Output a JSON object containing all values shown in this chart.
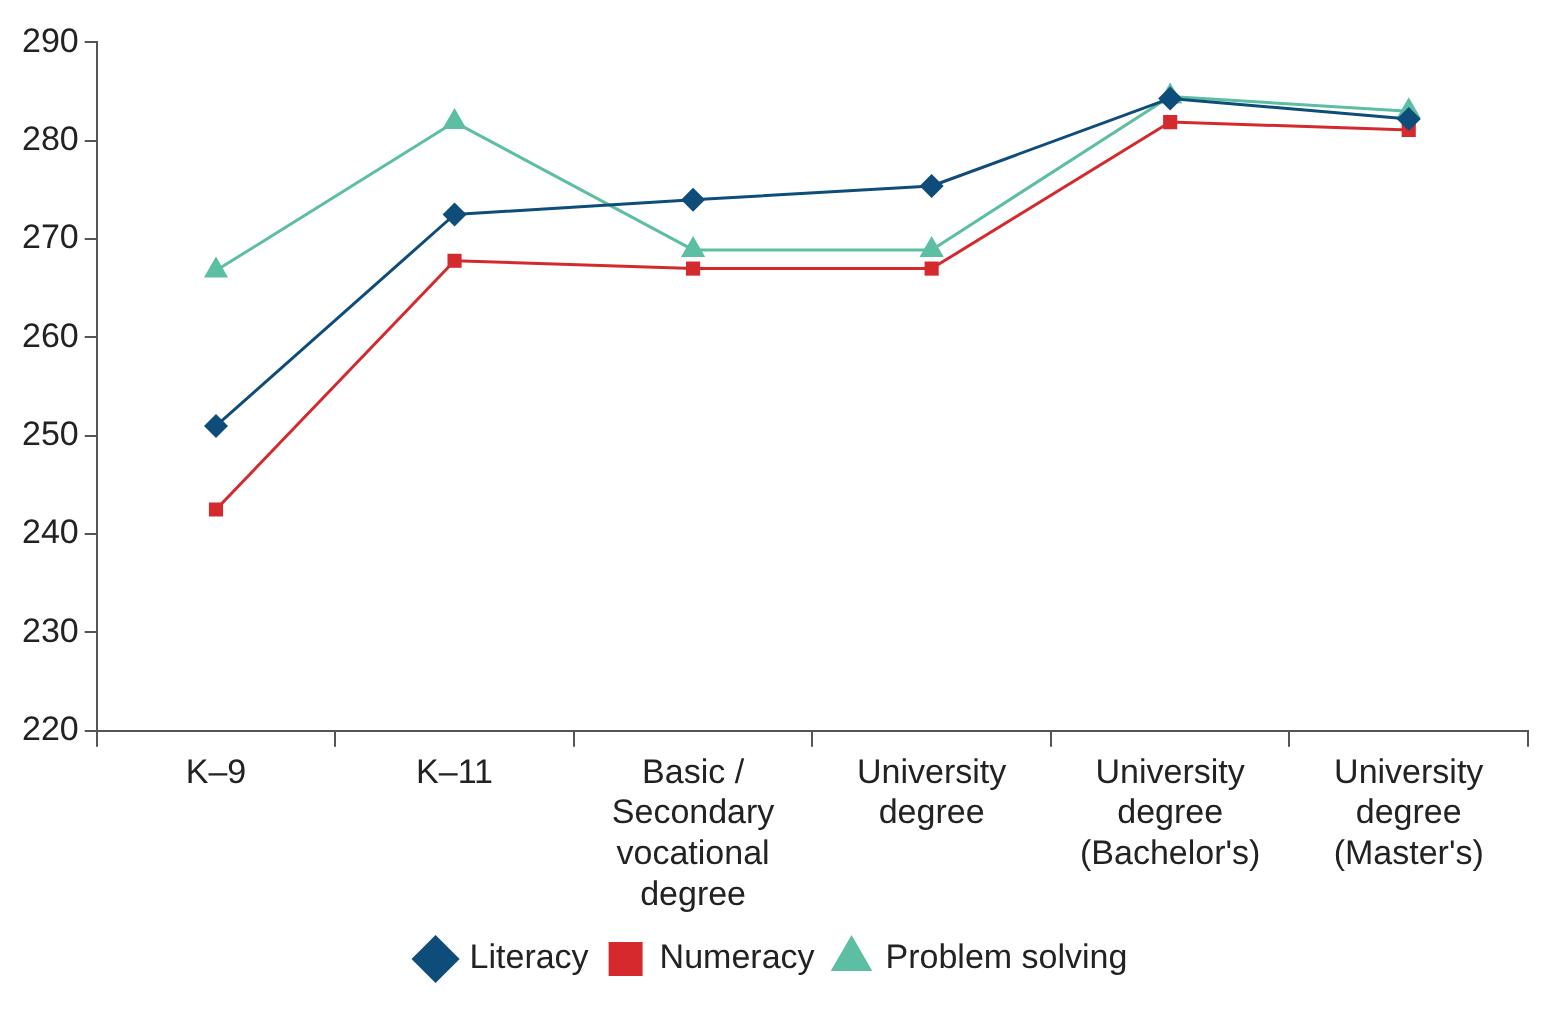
{
  "chart_data": {
    "type": "line",
    "categories": [
      "K–9",
      "K–11",
      "Basic / Secondary vocational degree",
      "University degree",
      "University degree (Bachelor's)",
      "University degree (Master's)"
    ],
    "series": [
      {
        "name": "Literacy",
        "color": "#0e4c7a",
        "marker": "diamond",
        "values": [
          251,
          272.5,
          274,
          275.4,
          284.3,
          282.2
        ]
      },
      {
        "name": "Numeracy",
        "color": "#d42a2e",
        "marker": "square",
        "values": [
          242.5,
          267.8,
          267,
          267,
          281.9,
          281.1
        ]
      },
      {
        "name": "Problem solving",
        "color": "#5cbea2",
        "marker": "triangle",
        "values": [
          266.8,
          281.9,
          268.9,
          268.9,
          284.5,
          283
        ]
      }
    ],
    "ylim": [
      220,
      290
    ],
    "yticks": [
      220,
      230,
      240,
      250,
      260,
      270,
      280,
      290
    ],
    "grid": false,
    "legend": "bottom",
    "line_style": "solid"
  }
}
